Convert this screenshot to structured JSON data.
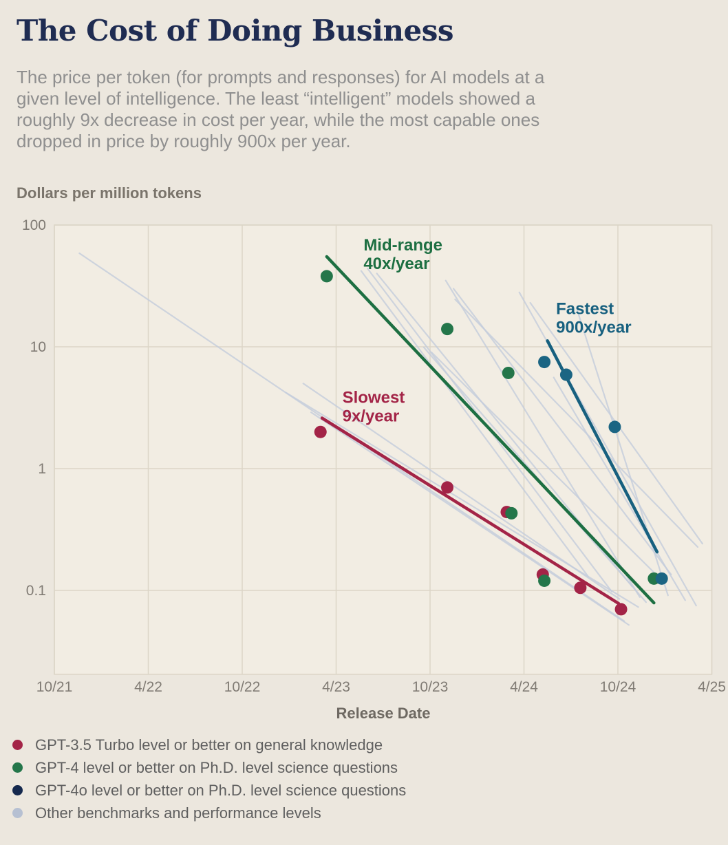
{
  "header": {
    "title": "The Cost of Doing Business",
    "subtitle_lines": [
      "The price per token (for prompts and responses) for AI models at a",
      "given level of intelligence. The least “intelligent” models showed a",
      "roughly 9x decrease in cost per year, while the most capable ones",
      "dropped in price by roughly 900x per year."
    ]
  },
  "chart_data": {
    "type": "scatter",
    "y_axis_title": "Dollars per million tokens",
    "xlabel": "Release Date",
    "scale": "log",
    "grid": true,
    "x_range_months": 42,
    "y_top": 100,
    "y_bottom": 0.02,
    "x_ticks": [
      {
        "label": "10/21",
        "month": 0
      },
      {
        "label": "4/22",
        "month": 6
      },
      {
        "label": "10/22",
        "month": 12
      },
      {
        "label": "4/23",
        "month": 18
      },
      {
        "label": "10/23",
        "month": 24
      },
      {
        "label": "4/24",
        "month": 30
      },
      {
        "label": "10/24",
        "month": 36
      },
      {
        "label": "4/25",
        "month": 42
      }
    ],
    "y_ticks": [
      {
        "label": "100",
        "value": 100
      },
      {
        "label": "10",
        "value": 10
      },
      {
        "label": "1",
        "value": 1
      },
      {
        "label": "0.1",
        "value": 0.1
      }
    ],
    "series": [
      {
        "key": "gpt35-turbo-level",
        "name": "GPT-3.5 Turbo level or better on general knowledge",
        "color": "#a32447",
        "points": [
          [
            17.0,
            2.0
          ],
          [
            25.1,
            0.7
          ],
          [
            28.9,
            0.44
          ],
          [
            31.2,
            0.135
          ],
          [
            33.6,
            0.105
          ],
          [
            36.2,
            0.07
          ]
        ]
      },
      {
        "key": "gpt4-level",
        "name": "GPT-4 level or better on Ph.D. level science questions",
        "color": "#24764a",
        "points": [
          [
            17.4,
            38
          ],
          [
            25.1,
            14
          ],
          [
            29.0,
            6.1
          ],
          [
            29.2,
            0.43
          ],
          [
            31.3,
            0.12
          ],
          [
            38.3,
            0.125
          ]
        ]
      },
      {
        "key": "gpt4o-level",
        "name": "GPT-4o level or better on Ph.D. level science questions",
        "color": "#1b6583",
        "points": [
          [
            31.3,
            7.5
          ],
          [
            32.7,
            5.9
          ],
          [
            35.8,
            2.2
          ],
          [
            38.8,
            0.125
          ]
        ]
      }
    ],
    "trend_lines": [
      {
        "key": "slowest",
        "label_lines": [
          "Slowest",
          "9x/year"
        ],
        "color": "#a32447",
        "from": [
          17.1,
          2.6
        ],
        "to": [
          36.05,
          0.078
        ],
        "label_anchor": [
          18.4,
          4.5
        ]
      },
      {
        "key": "midrange",
        "label_lines": [
          "Mid-range",
          "40x/year"
        ],
        "color": "#1d6f42",
        "from": [
          17.4,
          55
        ],
        "to": [
          38.3,
          0.079
        ],
        "label_anchor": [
          19.75,
          80
        ]
      },
      {
        "key": "fastest",
        "label_lines": [
          "Fastest",
          "900x/year"
        ],
        "color": "#17607f",
        "from": [
          31.5,
          11.2
        ],
        "to": [
          38.5,
          0.207
        ],
        "label_anchor": [
          32.05,
          24
        ]
      }
    ],
    "other_lines": {
      "name": "Other benchmarks and performance levels",
      "color": "#c5cddc",
      "opacity": 0.8,
      "segments": [
        [
          1.6,
          58.6,
          36.4,
          0.056
        ],
        [
          14.8,
          4.2,
          37.3,
          0.073
        ],
        [
          15.9,
          5.0,
          36.1,
          0.085
        ],
        [
          16.4,
          2.9,
          36.7,
          0.052
        ],
        [
          19.6,
          42,
          34.1,
          0.13
        ],
        [
          20.0,
          44,
          35.6,
          0.098
        ],
        [
          20.6,
          40,
          36.9,
          0.108
        ],
        [
          23.6,
          9.9,
          37.8,
          0.08
        ],
        [
          24.1,
          9.0,
          38.9,
          0.118
        ],
        [
          25.0,
          35,
          37.4,
          0.088
        ],
        [
          25.5,
          30,
          39.4,
          0.135
        ],
        [
          25.6,
          24.5,
          41.1,
          0.227
        ],
        [
          29.7,
          28,
          41.0,
          0.075
        ],
        [
          30.4,
          23,
          41.4,
          0.242
        ],
        [
          31.9,
          5.6,
          40.3,
          0.083
        ],
        [
          33.4,
          20,
          39.2,
          0.091
        ]
      ]
    },
    "colors": {
      "plot_bg": "#f2ede3",
      "page_bg": "#ece7de",
      "grid": "#dcd5c7",
      "tick_text": "#807b74"
    }
  },
  "legend": {
    "items": [
      {
        "label": "GPT-3.5 Turbo level or better on general knowledge",
        "color": "#a32447"
      },
      {
        "label": "GPT-4 level or better on Ph.D. level science questions",
        "color": "#24764a"
      },
      {
        "label": "GPT-4o level or better on Ph.D. level science questions",
        "color": "#15294e"
      },
      {
        "label": "Other benchmarks and performance levels",
        "color": "#b6c0d2"
      }
    ]
  }
}
